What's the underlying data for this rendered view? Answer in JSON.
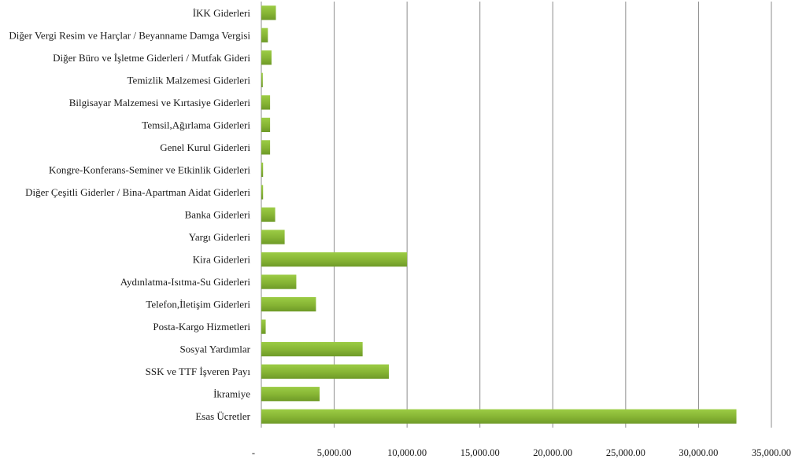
{
  "chart_data": {
    "type": "bar",
    "orientation": "horizontal",
    "categories": [
      "İKK Giderleri",
      "Diğer Vergi Resim ve Harçlar / Beyanname Damga Vergisi",
      "Diğer Büro ve İşletme Giderleri / Mutfak Gideri",
      "Temizlik Malzemesi Giderleri",
      "Bilgisayar Malzemesi ve Kırtasiye Giderleri",
      "Temsil,Ağırlama Giderleri",
      "Genel Kurul Giderleri",
      "Kongre-Konferans-Seminer ve Etkinlik Giderleri",
      "Diğer Çeşitli Giderler / Bina-Apartman Aidat Giderleri",
      "Banka Giderleri",
      "Yargı Giderleri",
      "Kira Giderleri",
      "Aydınlatma-Isıtma-Su Giderleri",
      "Telefon,İletişim Giderleri",
      "Posta-Kargo Hizmetleri",
      "Sosyal Yardımlar",
      "SSK ve TTF İşveren Payı",
      "İkramiye",
      "Esas Ücretler"
    ],
    "values": [
      1000,
      450,
      700,
      100,
      600,
      600,
      600,
      120,
      120,
      950,
      1600,
      10000,
      2400,
      3750,
      300,
      6950,
      8750,
      4000,
      32600
    ],
    "x_ticks": [
      "-",
      "5,000.00",
      "10,000.00",
      "15,000.00",
      "20,000.00",
      "25,000.00",
      "30,000.00",
      "35,000.00"
    ],
    "xlim": [
      0,
      35000
    ],
    "grid": true,
    "bar_color": "#8db83a",
    "title": "",
    "xlabel": "",
    "ylabel": ""
  }
}
